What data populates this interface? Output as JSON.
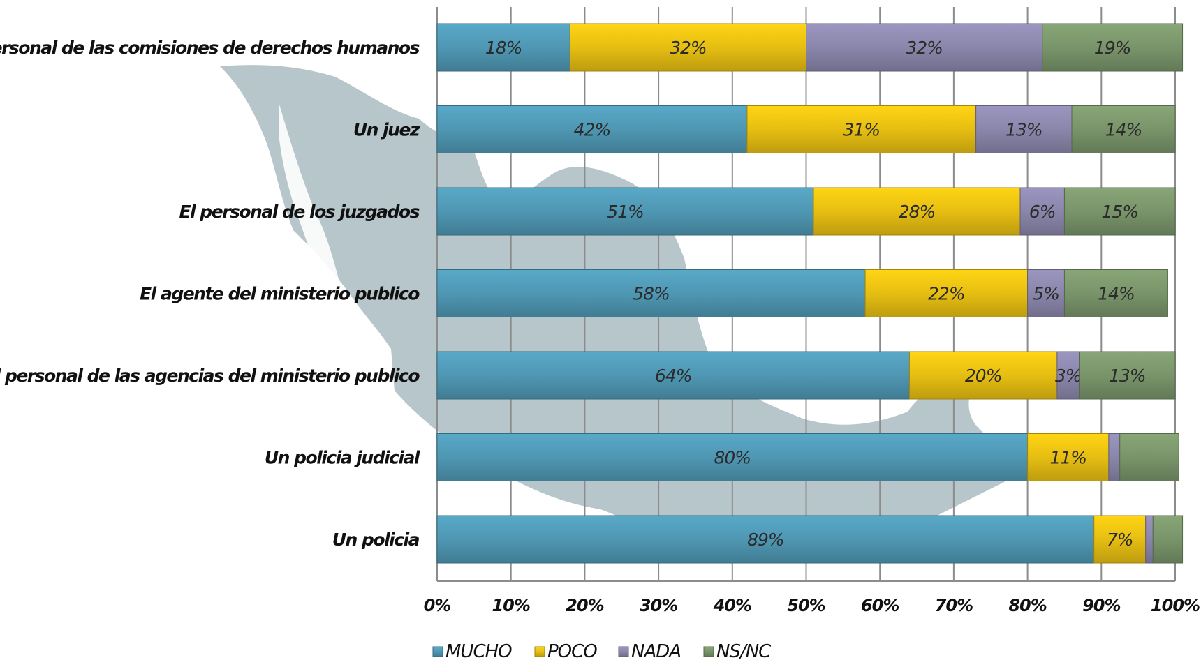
{
  "chart_data": {
    "type": "bar",
    "orientation": "horizontal",
    "stacked": true,
    "categories": [
      "Personal de las comisiones de derechos humanos",
      "Un juez",
      "El personal de los juzgados",
      "El agente del ministerio publico",
      "El personal de las agencias del ministerio publico",
      "Un policia judicial",
      "Un policia"
    ],
    "series": [
      {
        "name": "MUCHO",
        "color": "#4f97b3",
        "values": [
          18,
          42,
          51,
          58,
          64,
          80,
          89
        ],
        "labels": [
          "18%",
          "42%",
          "51%",
          "58%",
          "64%",
          "80%",
          "89%"
        ]
      },
      {
        "name": "POCO",
        "color": "#e6be12",
        "values": [
          32,
          31,
          28,
          22,
          20,
          11,
          7
        ],
        "labels": [
          "32%",
          "31%",
          "28%",
          "22%",
          "20%",
          "11%",
          "7%"
        ]
      },
      {
        "name": "NADA",
        "color": "#8a86ab",
        "values": [
          32,
          13,
          6,
          5,
          3,
          1.5,
          1
        ],
        "labels": [
          "32%",
          "13%",
          "6%",
          "5%",
          "3%",
          "",
          ""
        ]
      },
      {
        "name": "NS/NC",
        "color": "#79946a",
        "values": [
          19,
          14,
          15,
          14,
          13,
          8,
          4
        ],
        "labels": [
          "19%",
          "14%",
          "15%",
          "14%",
          "13%",
          "",
          ""
        ]
      }
    ],
    "xlim": [
      0,
      100
    ],
    "ticks": [
      "0%",
      "10%",
      "20%",
      "30%",
      "40%",
      "50%",
      "60%",
      "70%",
      "80%",
      "90%",
      "100%"
    ],
    "grid": true,
    "legend_position": "bottom",
    "title": "",
    "xlabel": "",
    "ylabel": ""
  }
}
